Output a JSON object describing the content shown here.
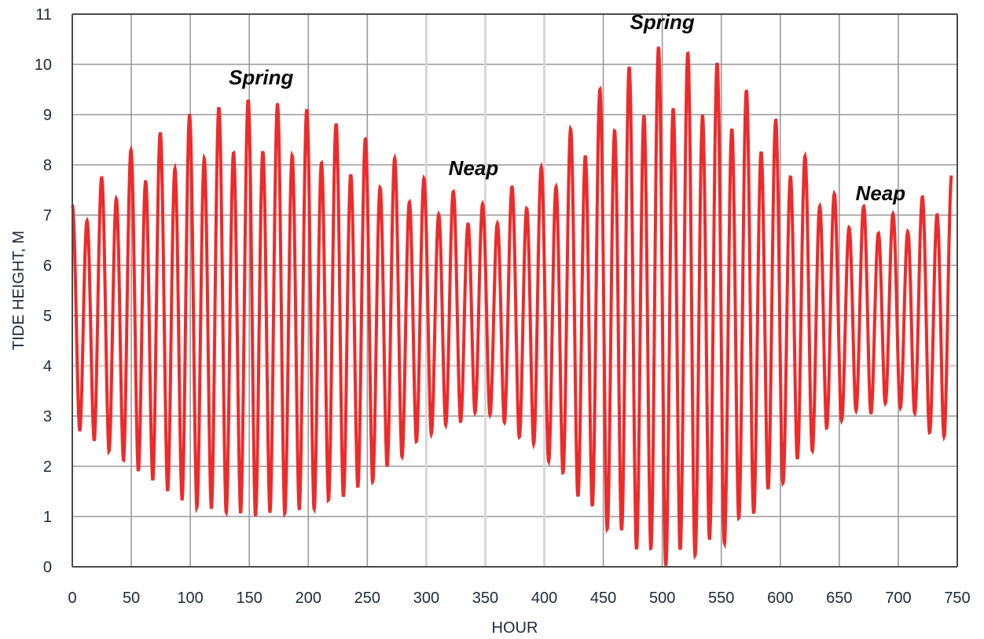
{
  "chart_data": {
    "type": "line",
    "xlabel": "HOUR",
    "ylabel": "TIDE HEIGHT, M",
    "xlim": [
      0,
      750
    ],
    "ylim": [
      0,
      11
    ],
    "x_ticks": [
      "0",
      "50",
      "100",
      "150",
      "200",
      "250",
      "300",
      "350",
      "400",
      "450",
      "500",
      "550",
      "600",
      "650",
      "700",
      "750"
    ],
    "y_ticks": [
      "0",
      "1",
      "2",
      "3",
      "4",
      "5",
      "6",
      "7",
      "8",
      "9",
      "10",
      "11"
    ],
    "grid": true,
    "annotations": [
      {
        "text": "Spring",
        "x": 160,
        "y": 9.6
      },
      {
        "text": "Neap",
        "x": 340,
        "y": 7.8
      },
      {
        "text": "Spring",
        "x": 500,
        "y": 10.7
      },
      {
        "text": "Neap",
        "x": 685,
        "y": 7.3
      }
    ],
    "envelope": {
      "x": [
        0,
        50,
        100,
        150,
        200,
        250,
        300,
        350,
        400,
        450,
        500,
        550,
        600,
        650,
        700,
        745
      ],
      "high_water": [
        7.2,
        8.3,
        9.0,
        9.3,
        9.1,
        8.5,
        7.7,
        7.2,
        8.0,
        9.6,
        10.4,
        10.0,
        8.8,
        7.3,
        7.0,
        7.8
      ],
      "low_water": [
        2.8,
        2.0,
        1.2,
        1.0,
        1.1,
        1.6,
        2.6,
        3.1,
        2.2,
        0.8,
        0.0,
        0.4,
        1.6,
        2.9,
        3.2,
        2.3
      ]
    },
    "series": [
      {
        "color": "#ee2a2a",
        "period_hours": 12.42,
        "mean": 5.0
      }
    ]
  }
}
